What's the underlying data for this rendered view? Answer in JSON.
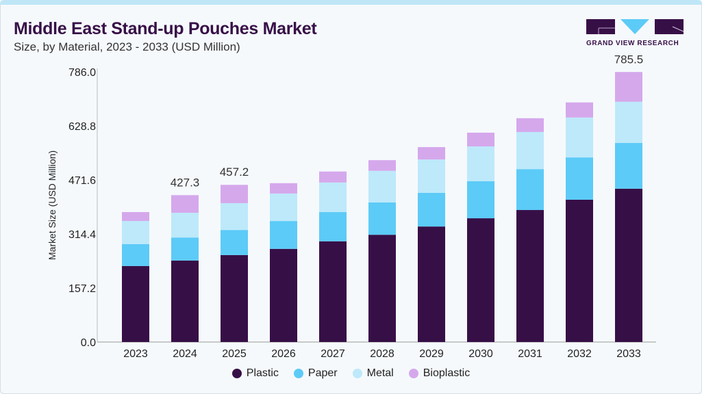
{
  "header": {
    "title": "Middle East Stand-up Pouches Market",
    "subtitle": "Size, by Material, 2023 - 2033 (USD Million)"
  },
  "logo": {
    "text": "GRAND VIEW RESEARCH"
  },
  "chart_data": {
    "type": "bar",
    "stacked": true,
    "title": "Middle East Stand-up Pouches Market",
    "subtitle": "Size, by Material, 2023 - 2033 (USD Million)",
    "xlabel": "",
    "ylabel": "Market Size (USD Million)",
    "ylim": [
      0,
      786
    ],
    "yticks": [
      "0.0",
      "157.2",
      "314.4",
      "471.6",
      "628.8",
      "786.0"
    ],
    "grid": false,
    "legend_position": "bottom",
    "categories": [
      "2023",
      "2024",
      "2025",
      "2026",
      "2027",
      "2028",
      "2029",
      "2030",
      "2031",
      "2032",
      "2033"
    ],
    "series": [
      {
        "name": "Plastic",
        "color": "#370f47",
        "values": [
          221,
          237,
          253,
          271,
          293,
          312,
          336,
          360,
          384,
          414,
          446
        ]
      },
      {
        "name": "Paper",
        "color": "#5ccbf7",
        "values": [
          64,
          67,
          73,
          81,
          85,
          94,
          98,
          108,
          119,
          123,
          133
        ]
      },
      {
        "name": "Metal",
        "color": "#bde9fa",
        "values": [
          67,
          72,
          78,
          80,
          86,
          92,
          97,
          101,
          108,
          116,
          120
        ]
      },
      {
        "name": "Bioplastic",
        "color": "#d5a8ec",
        "values": [
          26,
          51.3,
          53.2,
          30,
          32,
          31,
          36,
          40,
          40,
          44,
          86.5
        ]
      }
    ],
    "data_labels": {
      "2024": "427.3",
      "2025": "457.2",
      "2033": "785.5"
    }
  }
}
